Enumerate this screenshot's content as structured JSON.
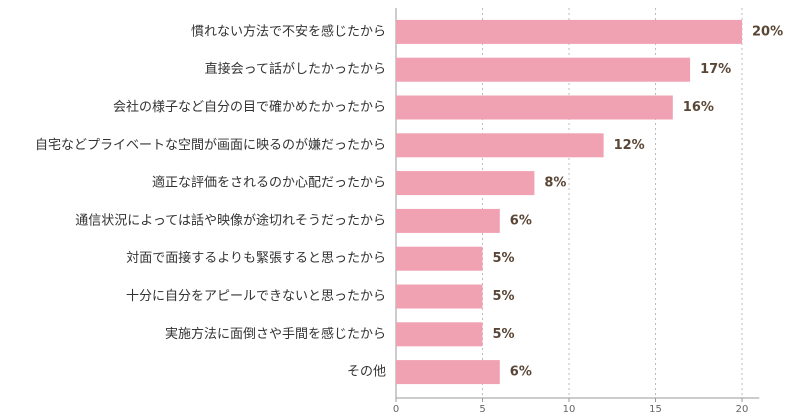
{
  "chart_data": {
    "type": "bar",
    "orientation": "horizontal",
    "categories": [
      "慣れない方法で不安を感じたから",
      "直接会って話がしたかったから",
      "会社の様子など自分の目で確かめたかったから",
      "自宅などプライベートな空間が画面に映るのが嫌だったから",
      "適正な評価をされるのか心配だったから",
      "通信状況によっては話や映像が途切れそうだったから",
      "対面で面接するよりも緊張すると思ったから",
      "十分に自分をアピールできないと思ったから",
      "実施方法に面倒さや手間を感じたから",
      "その他"
    ],
    "values": [
      20,
      17,
      16,
      12,
      8,
      6,
      5,
      5,
      5,
      6
    ],
    "value_labels": [
      "20%",
      "17%",
      "16%",
      "12%",
      "8%",
      "6%",
      "5%",
      "5%",
      "5%",
      "6%"
    ],
    "color": "#f0a1b2",
    "xlim": [
      0,
      21
    ],
    "xticks": [
      0,
      5,
      10,
      15,
      20
    ],
    "grid": true
  }
}
